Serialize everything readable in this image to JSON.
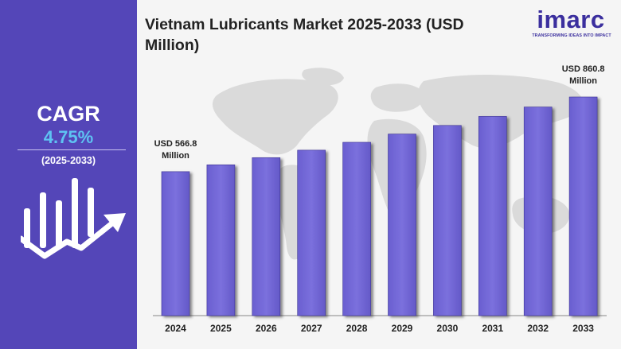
{
  "left_panel": {
    "cagr_label": "CAGR",
    "cagr_value": "4.75%",
    "cagr_period": "(2025-2033)",
    "icon": "growth-chart-arrow-icon"
  },
  "header": {
    "title": "Vietnam Lubricants Market 2025-2033 (USD Million)",
    "logo_text": "imarc",
    "logo_tagline": "TRANSFORMING IDEAS INTO IMPACT"
  },
  "colors": {
    "panel": "#5446b8",
    "bar": "#7b70dd",
    "cagr_accent": "#5ec3f2",
    "map": "#d9d9d9"
  },
  "chart_data": {
    "type": "bar",
    "title": "Vietnam Lubricants Market 2025-2033 (USD Million)",
    "categories": [
      "2024",
      "2025",
      "2026",
      "2027",
      "2028",
      "2029",
      "2030",
      "2031",
      "2032",
      "2033"
    ],
    "values": [
      566.8,
      593.7,
      621.9,
      651.4,
      682.4,
      714.8,
      748.7,
      784.3,
      821.5,
      860.8
    ],
    "annotations": [
      {
        "category": "2024",
        "line1": "USD 566.8",
        "line2": "Million"
      },
      {
        "category": "2033",
        "line1": "USD 860.8",
        "line2": "Million"
      }
    ],
    "xlabel": "",
    "ylabel": "",
    "grid": false
  }
}
